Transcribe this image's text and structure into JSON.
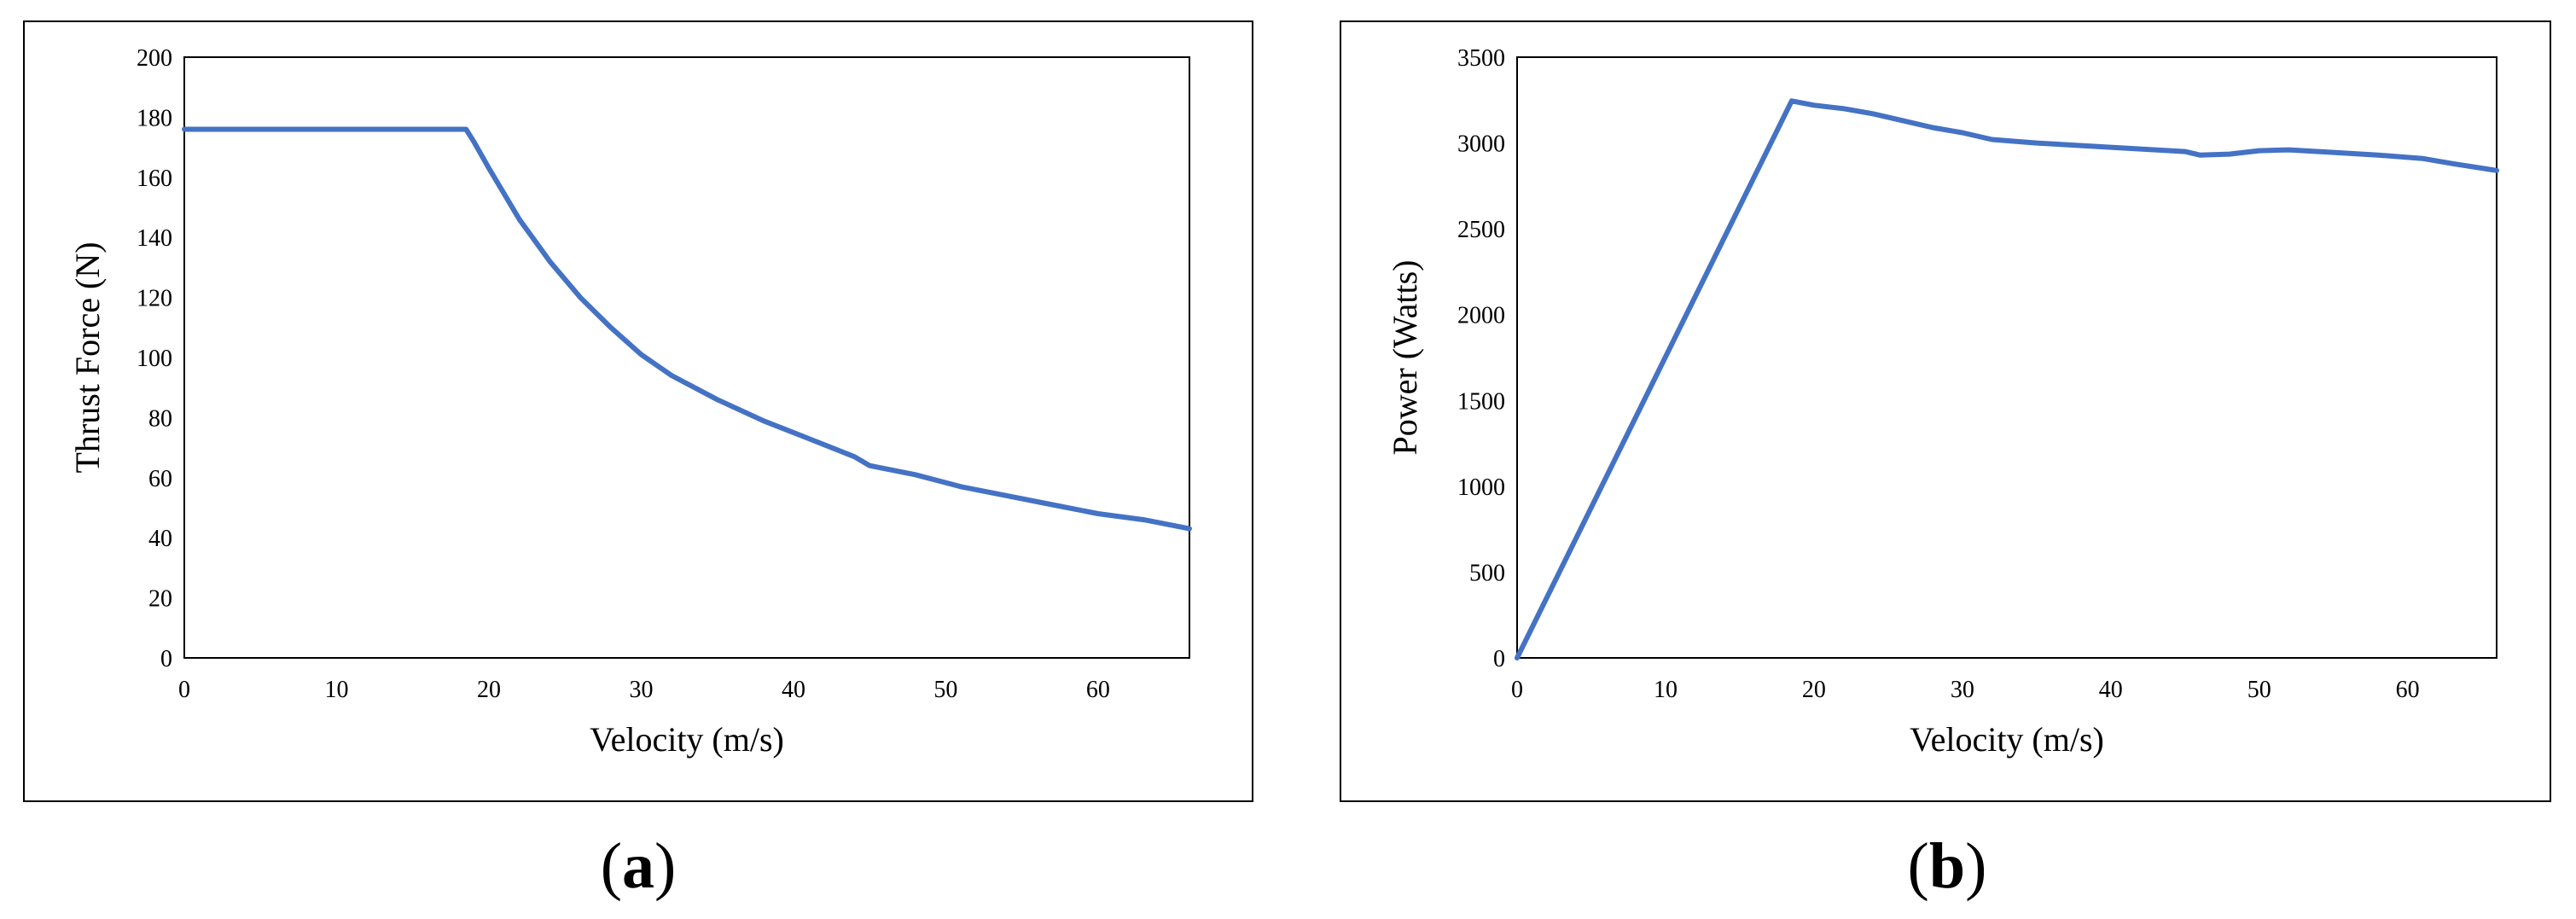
{
  "chart_data": [
    {
      "type": "line",
      "panel_label": "a",
      "xlabel": "Velocity (m/s)",
      "ylabel": "Thrust Force (N)",
      "xlim": [
        0,
        66
      ],
      "ylim": [
        0,
        200
      ],
      "xticks": [
        0,
        10,
        20,
        30,
        40,
        50,
        60
      ],
      "yticks": [
        0,
        20,
        40,
        60,
        80,
        100,
        120,
        140,
        160,
        180,
        200
      ],
      "grid": false,
      "color": "#4472C4",
      "series": [
        {
          "x": [
            0,
            5,
            10,
            15,
            18.5,
            19,
            20,
            22,
            24,
            26,
            28,
            30,
            32,
            35,
            38,
            41,
            44,
            45,
            48,
            51,
            54,
            57,
            60,
            63,
            66
          ],
          "y": [
            176,
            176,
            176,
            176,
            176,
            172,
            163,
            146,
            132,
            120,
            110,
            101,
            94,
            86,
            79,
            73,
            67,
            64,
            61,
            57,
            54,
            51,
            48,
            46,
            43
          ]
        }
      ]
    },
    {
      "type": "line",
      "panel_label": "b",
      "xlabel": "Velocity (m/s)",
      "ylabel": "Power (Watts)",
      "xlim": [
        0,
        66
      ],
      "ylim": [
        0,
        3500
      ],
      "xticks": [
        0,
        10,
        20,
        30,
        40,
        50,
        60
      ],
      "yticks": [
        0,
        500,
        1000,
        1500,
        2000,
        2500,
        3000,
        3500
      ],
      "grid": false,
      "color": "#4472C4",
      "series": [
        {
          "x": [
            0,
            18.5,
            20,
            22,
            24,
            26,
            28,
            30,
            32,
            35,
            38,
            41,
            44,
            45,
            46,
            48,
            50,
            52,
            55,
            58,
            61,
            63,
            66
          ],
          "y": [
            0,
            3245,
            3220,
            3200,
            3170,
            3130,
            3090,
            3060,
            3020,
            3000,
            2985,
            2970,
            2955,
            2950,
            2930,
            2935,
            2955,
            2960,
            2945,
            2930,
            2910,
            2880,
            2840
          ]
        }
      ]
    }
  ]
}
